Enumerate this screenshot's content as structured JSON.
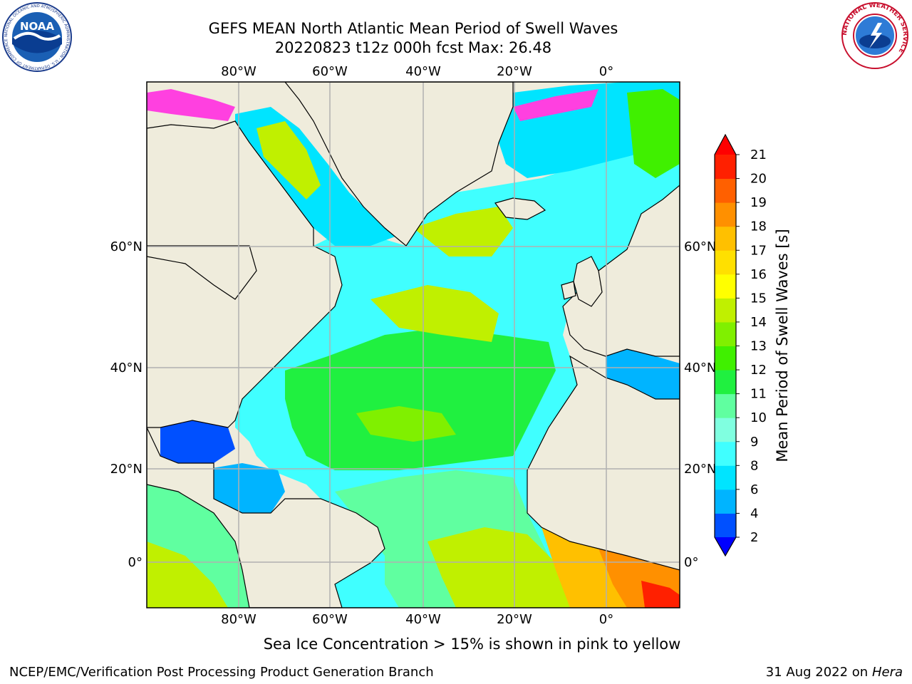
{
  "header": {
    "title_line1": "GEFS MEAN North Atlantic Mean Period of Swell Waves",
    "title_line2": "20220823 t12z 000h fcst   Max: 26.48"
  },
  "logos": {
    "noaa": {
      "text": "NOAA",
      "ring_text": "NATIONAL OCEANIC AND ATMOSPHERIC ADMINISTRATION · U.S. DEPARTMENT OF COMMERCE"
    },
    "nws": {
      "ring_text": "NATIONAL WEATHER SERVICE"
    }
  },
  "map": {
    "lon_ticks_top": [
      "80°W",
      "60°W",
      "40°W",
      "20°W",
      "0°"
    ],
    "lon_ticks_bottom": [
      "80°W",
      "60°W",
      "40°W",
      "20°W",
      "0°"
    ],
    "lat_ticks_left": [
      "60°N",
      "40°N",
      "20°N",
      "0°"
    ],
    "lat_ticks_right": [
      "60°N",
      "40°N",
      "20°N",
      "0°"
    ],
    "land_color": "#efecdc",
    "grid_color": "#b0b0b0"
  },
  "colorbar": {
    "label": "Mean Period of Swell Waves [s]",
    "ticks": [
      "2",
      "4",
      "6",
      "8",
      "9",
      "10",
      "11",
      "12",
      "13",
      "14",
      "15",
      "16",
      "17",
      "18",
      "19",
      "20",
      "21"
    ],
    "colors": [
      "#0000ff",
      "#0050ff",
      "#00b4ff",
      "#00e4ff",
      "#40ffff",
      "#80ffe0",
      "#60ffa0",
      "#20f040",
      "#40f000",
      "#80f000",
      "#c0f000",
      "#ffff00",
      "#ffe000",
      "#ffc000",
      "#ff9000",
      "#ff6000",
      "#ff2000",
      "#ff0000"
    ]
  },
  "footer": {
    "ice_note": "Sea Ice Concentration > 15% is shown in pink to yellow",
    "credit_left": "NCEP/EMC/Verification Post Processing Product Generation Branch",
    "credit_right_date": "31 Aug 2022 on",
    "credit_right_host": "Hera"
  }
}
